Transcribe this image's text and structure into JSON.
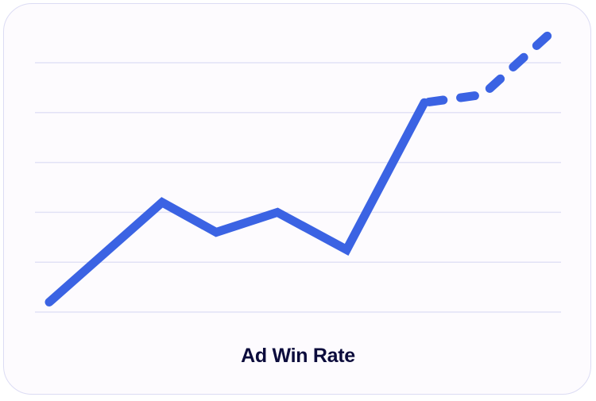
{
  "chart_data": {
    "type": "line",
    "title": "Ad Win Rate",
    "xlabel": "",
    "ylabel": "",
    "grid": true,
    "ylim": [
      0,
      5
    ],
    "xlim": [
      0,
      10
    ],
    "gridlines": [
      0,
      1,
      2,
      3,
      4,
      5
    ],
    "series": [
      {
        "style": "solid",
        "x": [
          0,
          2.25,
          3.33,
          4.55,
          5.93,
          7.48
        ],
        "y": [
          0.2,
          2.2,
          1.6,
          2.0,
          1.25,
          4.2
        ]
      },
      {
        "style": "dashed",
        "x": [
          7.48,
          8.65,
          10
        ],
        "y": [
          4.2,
          4.36,
          5.6
        ]
      }
    ],
    "colors": {
      "line": "#3b63e3",
      "grid": "#e2e2f6",
      "title": "#0c0c3c",
      "border": "#dcdcf4"
    }
  }
}
